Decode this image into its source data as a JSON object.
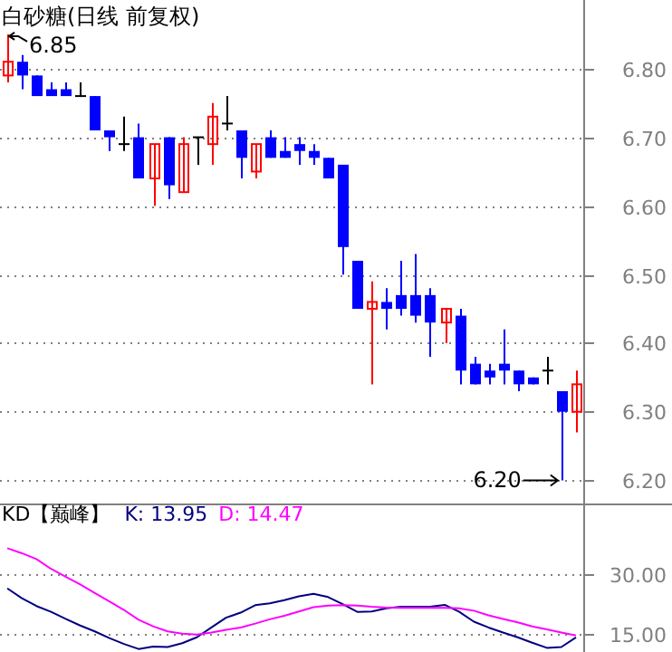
{
  "chart_data": [
    {
      "type": "candlestick",
      "title": "白砂糖(日线 前复权)",
      "categories": [
        null,
        null,
        null,
        null,
        null,
        null,
        null,
        null,
        null,
        null,
        null,
        null,
        null,
        null,
        null,
        null,
        null,
        null,
        null,
        null,
        null,
        null,
        null,
        null,
        null,
        null,
        null,
        null,
        null,
        null,
        null,
        null,
        null,
        null,
        null,
        null,
        null,
        null,
        null,
        null
      ],
      "ohlc": [
        [
          6.79,
          6.85,
          6.78,
          6.81
        ],
        [
          6.81,
          6.82,
          6.77,
          6.79
        ],
        [
          6.79,
          6.79,
          6.76,
          6.76
        ],
        [
          6.77,
          6.78,
          6.76,
          6.76
        ],
        [
          6.77,
          6.78,
          6.76,
          6.76
        ],
        [
          6.76,
          6.78,
          6.76,
          6.76
        ],
        [
          6.76,
          6.76,
          6.71,
          6.71
        ],
        [
          6.71,
          6.71,
          6.68,
          6.7
        ],
        [
          6.69,
          6.73,
          6.68,
          6.69
        ],
        [
          6.7,
          6.72,
          6.64,
          6.64
        ],
        [
          6.64,
          6.69,
          6.6,
          6.69
        ],
        [
          6.7,
          6.7,
          6.61,
          6.63
        ],
        [
          6.62,
          6.7,
          6.62,
          6.69
        ],
        [
          6.7,
          6.7,
          6.66,
          6.7
        ],
        [
          6.69,
          6.75,
          6.66,
          6.73
        ],
        [
          6.72,
          6.76,
          6.71,
          6.72
        ],
        [
          6.71,
          6.71,
          6.64,
          6.67
        ],
        [
          6.65,
          6.69,
          6.64,
          6.69
        ],
        [
          6.7,
          6.71,
          6.67,
          6.67
        ],
        [
          6.68,
          6.7,
          6.67,
          6.67
        ],
        [
          6.69,
          6.7,
          6.66,
          6.68
        ],
        [
          6.68,
          6.69,
          6.66,
          6.67
        ],
        [
          6.67,
          6.67,
          6.64,
          6.64
        ],
        [
          6.66,
          6.66,
          6.5,
          6.54
        ],
        [
          6.52,
          6.52,
          6.45,
          6.45
        ],
        [
          6.45,
          6.49,
          6.34,
          6.46
        ],
        [
          6.46,
          6.48,
          6.42,
          6.45
        ],
        [
          6.47,
          6.52,
          6.44,
          6.45
        ],
        [
          6.47,
          6.53,
          6.43,
          6.44
        ],
        [
          6.47,
          6.48,
          6.38,
          6.43
        ],
        [
          6.43,
          6.45,
          6.4,
          6.45
        ],
        [
          6.44,
          6.45,
          6.34,
          6.36
        ],
        [
          6.37,
          6.38,
          6.34,
          6.34
        ],
        [
          6.36,
          6.37,
          6.34,
          6.35
        ],
        [
          6.37,
          6.42,
          6.34,
          6.36
        ],
        [
          6.36,
          6.36,
          6.33,
          6.34
        ],
        [
          6.35,
          6.35,
          6.34,
          6.34
        ],
        [
          6.36,
          6.38,
          6.34,
          6.36
        ],
        [
          6.33,
          6.33,
          6.2,
          6.3
        ],
        [
          6.3,
          6.36,
          6.27,
          6.34
        ]
      ],
      "ylim": [
        6.165,
        6.9
      ],
      "yticks": [
        {
          "value": 6.2,
          "label": "6.20"
        },
        {
          "value": 6.3,
          "label": "6.30"
        },
        {
          "value": 6.4,
          "label": "6.40"
        },
        {
          "value": 6.5,
          "label": "6.50"
        },
        {
          "value": 6.6,
          "label": "6.60"
        },
        {
          "value": 6.7,
          "label": "6.70"
        },
        {
          "value": 6.8,
          "label": "6.80"
        }
      ],
      "grid": "y",
      "annotations": [
        "6.85",
        "6.20"
      ]
    },
    {
      "type": "line",
      "title": "KD【巅峰】",
      "categories": [
        null,
        null,
        null,
        null,
        null,
        null,
        null,
        null,
        null,
        null,
        null,
        null,
        null,
        null,
        null,
        null,
        null,
        null,
        null,
        null,
        null,
        null,
        null,
        null,
        null,
        null,
        null,
        null,
        null,
        null,
        null,
        null,
        null,
        null,
        null,
        null,
        null,
        null,
        null,
        null
      ],
      "series": [
        {
          "name": "K: 13.95",
          "color": "#000080",
          "values": [
            26.5,
            24,
            22,
            20.5,
            18.7,
            17,
            15.5,
            13.8,
            12.3,
            11.0,
            11.6,
            11.5,
            12.5,
            14.0,
            16.5,
            19.0,
            20.3,
            22.2,
            22.7,
            23.5,
            24.5,
            25.1,
            24.3,
            22.5,
            20.5,
            20.6,
            21.4,
            21.8,
            21.8,
            21.8,
            22.3,
            20.5,
            18.0,
            16.5,
            15.2,
            14.0,
            12.6,
            11.3,
            11.5,
            13.95
          ]
        },
        {
          "name": "D: 14.47",
          "color": "#ff00ff",
          "values": [
            36.8,
            35.5,
            34.0,
            31.5,
            29.5,
            27.5,
            25.3,
            23.2,
            21.0,
            18.5,
            16.8,
            15.5,
            14.9,
            14.7,
            15.2,
            15.9,
            16.5,
            17.5,
            18.6,
            19.5,
            20.6,
            21.7,
            22.1,
            22.2,
            22.1,
            21.8,
            21.6,
            21.5,
            21.5,
            21.5,
            21.5,
            21.4,
            20.8,
            19.6,
            18.7,
            17.8,
            16.8,
            16.0,
            15.2,
            14.47
          ]
        }
      ],
      "ylim": [
        10,
        48
      ],
      "yticks": [
        {
          "value": 15,
          "label": "15.00"
        },
        {
          "value": 30,
          "label": "30.00"
        }
      ],
      "grid": "y"
    }
  ]
}
